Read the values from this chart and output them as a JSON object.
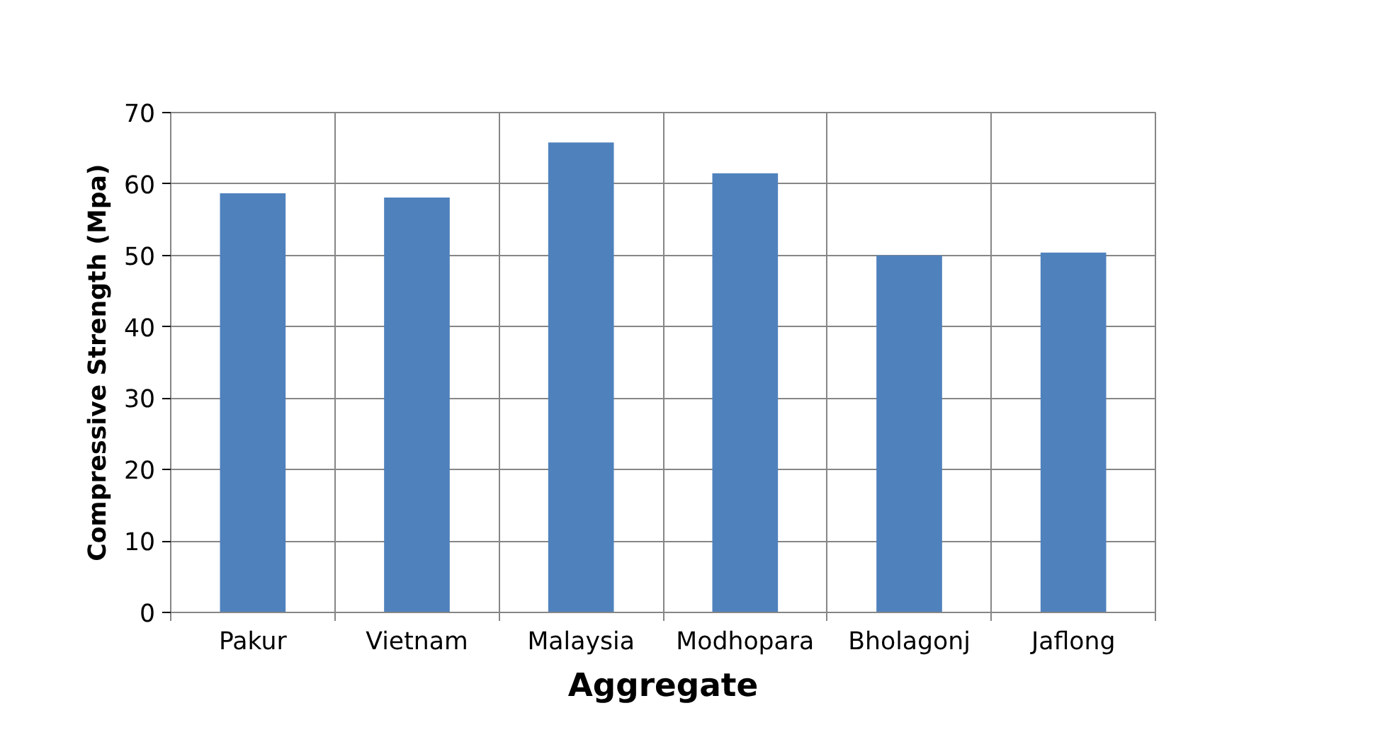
{
  "chart_data": {
    "type": "bar",
    "xlabel": "Aggregate",
    "ylabel": "Compressive Strength (Mpa)",
    "categories": [
      "Pakur",
      "Vietnam",
      "Malaysia",
      "Modhopara",
      "Bholagonj",
      "Jaflong"
    ],
    "values": [
      58.7,
      58.1,
      65.8,
      61.5,
      50.0,
      50.4
    ],
    "color": "#4f81bd",
    "ylim": [
      0,
      70
    ],
    "yticks": [
      0,
      10,
      20,
      30,
      40,
      50,
      60,
      70
    ],
    "grid": true
  }
}
